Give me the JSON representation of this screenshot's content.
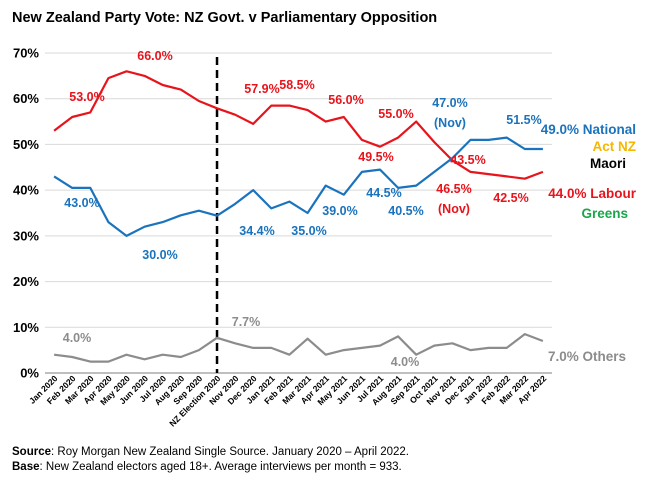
{
  "title": "New Zealand Party Vote: NZ Govt. v Parliamentary Opposition",
  "footer": {
    "source_label": "Source",
    "source_text": ": Roy Morgan New Zealand Single Source. January 2020 – April 2022.",
    "base_label": "Base",
    "base_text": ": New Zealand electors aged 18+. Average interviews per month = 933."
  },
  "colors": {
    "govt": "#e8141c",
    "opposition": "#1a73bd",
    "others": "#8c8c8c",
    "act": "#f6b700",
    "greens": "#1aa64a",
    "maori": "#000000"
  },
  "chart_data": {
    "type": "line",
    "categories": [
      "Jan 2020",
      "Feb 2020",
      "Mar 2020",
      "Apr 2020",
      "May 2020",
      "Jun 2020",
      "Jul 2020",
      "Aug 2020",
      "Sep 2020",
      "NZ Election 2020",
      "Nov 2020",
      "Dec 2020",
      "Jan 2021",
      "Feb 2021",
      "Mar 2021",
      "Apr 2021",
      "May 2021",
      "Jun 2021",
      "Jul 2021",
      "Aug 2021",
      "Sep 2021",
      "Oct 2021",
      "Nov 2021",
      "Dec 2021",
      "Jan 2022",
      "Feb 2022",
      "Mar 2022",
      "Apr 2022"
    ],
    "y_ticks": [
      "0%",
      "10%",
      "20%",
      "30%",
      "40%",
      "50%",
      "60%",
      "70%"
    ],
    "ylim": [
      0,
      70
    ],
    "election_marker_category": "NZ Election 2020",
    "series": [
      {
        "name": "Govt",
        "color_key": "govt",
        "values": [
          53.0,
          56.0,
          57.0,
          64.5,
          66.0,
          65.0,
          63.0,
          62.0,
          59.5,
          57.9,
          56.5,
          54.5,
          58.5,
          58.5,
          57.5,
          55.0,
          56.0,
          51.0,
          49.5,
          51.5,
          55.0,
          50.5,
          46.5,
          44.0,
          43.5,
          43.0,
          42.5,
          44.0
        ]
      },
      {
        "name": "Opposition",
        "color_key": "opposition",
        "values": [
          43.0,
          40.5,
          40.5,
          33.0,
          30.0,
          32.0,
          33.0,
          34.5,
          35.5,
          34.4,
          37.0,
          40.0,
          36.0,
          37.5,
          35.0,
          41.0,
          39.0,
          44.0,
          44.5,
          40.5,
          41.0,
          44.0,
          47.0,
          51.0,
          51.0,
          51.5,
          49.0,
          49.0
        ]
      },
      {
        "name": "Others",
        "color_key": "others",
        "values": [
          4.0,
          3.5,
          2.5,
          2.5,
          4.0,
          3.0,
          4.0,
          3.5,
          5.0,
          7.7,
          6.5,
          5.5,
          5.5,
          4.0,
          7.5,
          4.0,
          5.0,
          5.5,
          6.0,
          8.0,
          4.0,
          6.0,
          6.5,
          5.0,
          5.5,
          5.5,
          8.5,
          7.0
        ]
      }
    ],
    "data_labels": [
      {
        "text": "53.0%",
        "series": "Govt"
      },
      {
        "text": "66.0%",
        "series": "Govt"
      },
      {
        "text": "57.9%",
        "series": "Govt"
      },
      {
        "text": "58.5%",
        "series": "Govt"
      },
      {
        "text": "56.0%",
        "series": "Govt"
      },
      {
        "text": "55.0%",
        "series": "Govt"
      },
      {
        "text": "49.5%",
        "series": "Govt"
      },
      {
        "text": "46.5%",
        "series": "Govt"
      },
      {
        "text": "(Nov)",
        "series": "Govt"
      },
      {
        "text": "43.5%",
        "series": "Govt"
      },
      {
        "text": "42.5%",
        "series": "Govt"
      },
      {
        "text": "43.0%",
        "series": "Opposition"
      },
      {
        "text": "30.0%",
        "series": "Opposition"
      },
      {
        "text": "34.4%",
        "series": "Opposition"
      },
      {
        "text": "35.0%",
        "series": "Opposition"
      },
      {
        "text": "39.0%",
        "series": "Opposition"
      },
      {
        "text": "44.5%",
        "series": "Opposition"
      },
      {
        "text": "40.5%",
        "series": "Opposition"
      },
      {
        "text": "47.0%",
        "series": "Opposition"
      },
      {
        "text": "(Nov)",
        "series": "Opposition"
      },
      {
        "text": "51.5%",
        "series": "Opposition"
      },
      {
        "text": "4.0%",
        "series": "Others"
      },
      {
        "text": "7.7%",
        "series": "Others"
      },
      {
        "text": "4.0%",
        "series": "Others"
      }
    ],
    "legend": [
      {
        "text": "49.0% National",
        "color_key": "opposition"
      },
      {
        "text": "Act NZ",
        "color_key": "act"
      },
      {
        "text": "Maori",
        "color_key": "maori"
      },
      {
        "text": "44.0% Labour",
        "color_key": "govt"
      },
      {
        "text": "Greens",
        "color_key": "greens"
      },
      {
        "text": "7.0% Others",
        "color_key": "others"
      }
    ]
  }
}
